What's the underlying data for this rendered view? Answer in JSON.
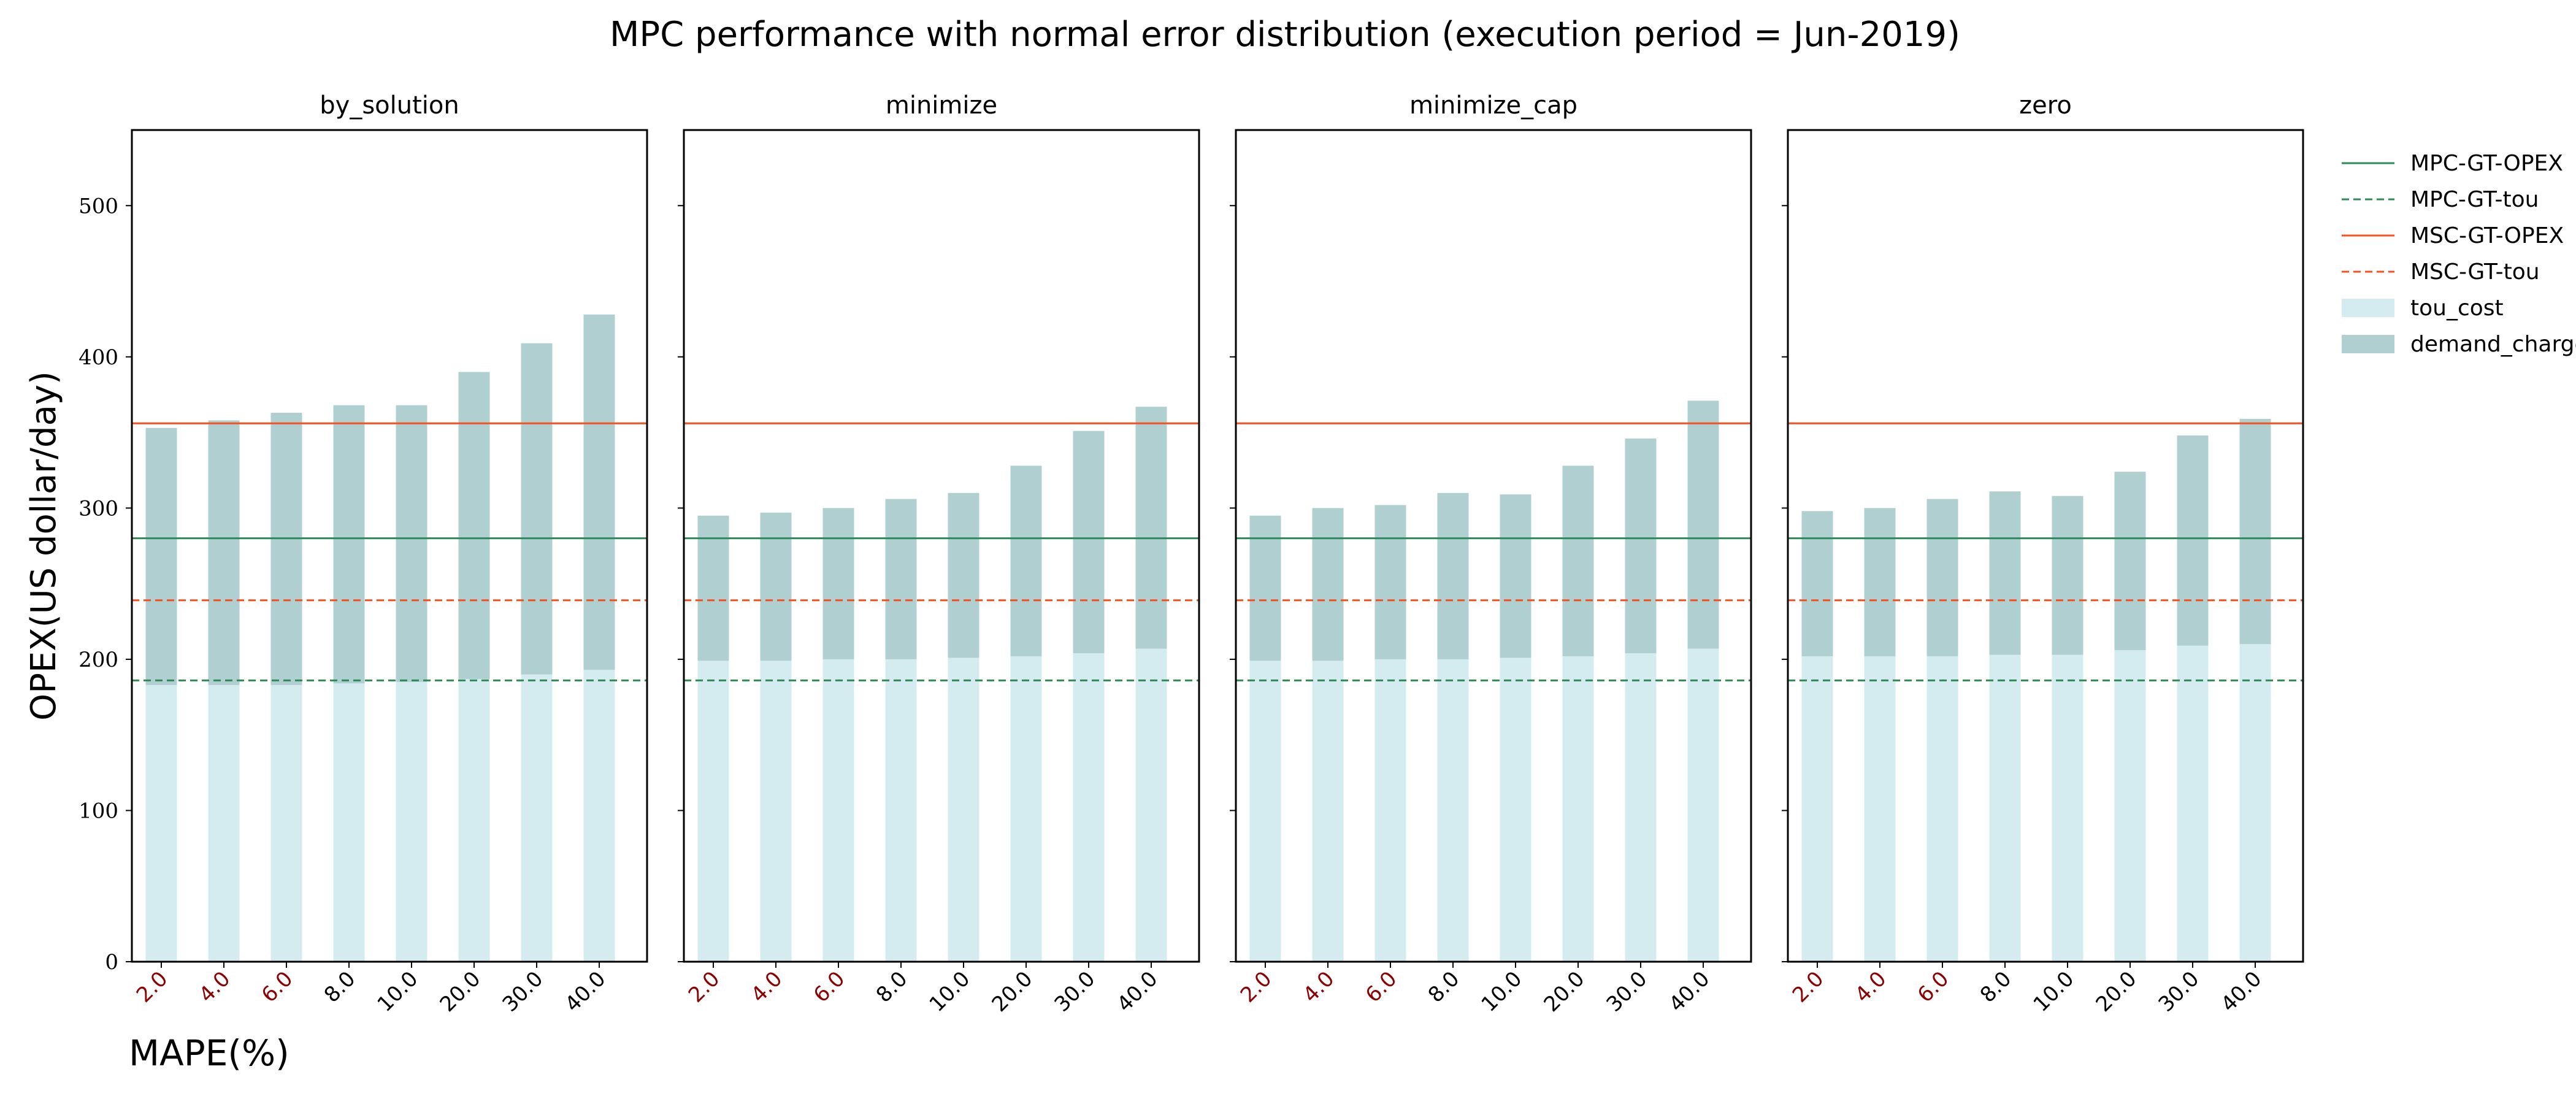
{
  "chart_data": {
    "type": "bar",
    "title": "MPC performance with normal error distribution (execution period = Jun-2019)",
    "xlabel": "MAPE(%)",
    "ylabel": "OPEX(US dollar/day)",
    "ylim": [
      0,
      550
    ],
    "yticks": [
      0,
      100,
      200,
      300,
      400,
      500
    ],
    "categories": [
      "2.0",
      "4.0",
      "6.0",
      "8.0",
      "10.0",
      "20.0",
      "30.0",
      "40.0"
    ],
    "highlighted_categories": [
      "2.0",
      "4.0",
      "6.0"
    ],
    "legend_position": "right",
    "colors": {
      "tou_cost": "#d4ebf0",
      "demand_charge": "#b0cfd0",
      "mpc": "#2e8b57",
      "msc": "#f4511e",
      "highlight_tick": "#8b0000"
    },
    "reference_lines": [
      {
        "name": "MPC-GT-OPEX",
        "value": 280,
        "color": "#2e8b57",
        "dash": false
      },
      {
        "name": "MPC-GT-tou",
        "value": 186,
        "color": "#2e8b57",
        "dash": true
      },
      {
        "name": "MSC-GT-OPEX",
        "value": 356,
        "color": "#f4511e",
        "dash": false
      },
      {
        "name": "MSC-GT-tou",
        "value": 239,
        "color": "#f4511e",
        "dash": true
      }
    ],
    "bar_series": [
      {
        "name": "tou_cost",
        "color": "#d4ebf0"
      },
      {
        "name": "demand_charge",
        "color": "#b0cfd0"
      }
    ],
    "panels": [
      {
        "name": "by_solution",
        "tou_cost": [
          183,
          183,
          183,
          184,
          185,
          187,
          190,
          193
        ],
        "total": [
          353,
          358,
          363,
          368,
          368,
          390,
          409,
          428
        ]
      },
      {
        "name": "minimize",
        "tou_cost": [
          199,
          199,
          200,
          200,
          201,
          202,
          204,
          207
        ],
        "total": [
          295,
          297,
          300,
          306,
          310,
          328,
          351,
          367
        ]
      },
      {
        "name": "minimize_cap",
        "tou_cost": [
          199,
          199,
          200,
          200,
          201,
          202,
          204,
          207
        ],
        "total": [
          295,
          300,
          302,
          310,
          309,
          328,
          346,
          371
        ]
      },
      {
        "name": "zero",
        "tou_cost": [
          202,
          202,
          202,
          203,
          203,
          206,
          209,
          210
        ],
        "total": [
          298,
          300,
          306,
          311,
          308,
          324,
          348,
          359
        ]
      }
    ]
  }
}
